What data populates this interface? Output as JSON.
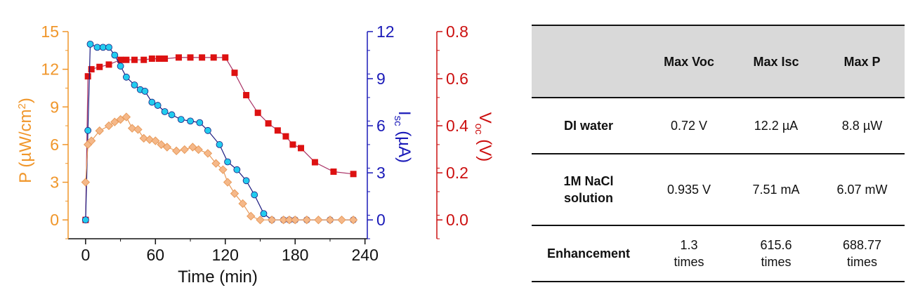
{
  "chart_data": {
    "type": "line",
    "xlabel": "Time (min)",
    "xlim": [
      -15,
      242
    ],
    "xticks": [
      0,
      60,
      120,
      180,
      240
    ],
    "axes": [
      {
        "id": "P",
        "label": "P (µW/cm²)",
        "color": "#f0962a",
        "ylim": [
          -1.5,
          15
        ],
        "ticks": [
          0,
          3,
          6,
          9,
          12,
          15
        ]
      },
      {
        "id": "Isc",
        "label": "Isc (µA)",
        "color": "#1a1ab8",
        "ylim": [
          -1.2,
          12
        ],
        "ticks": [
          0,
          3,
          6,
          9,
          12
        ]
      },
      {
        "id": "Voc",
        "label": "Voc (V)",
        "color": "#cc1010",
        "ylim": [
          -0.08,
          0.8
        ],
        "ticks": [
          0.0,
          0.2,
          0.4,
          0.6,
          0.8
        ]
      }
    ],
    "series": [
      {
        "axis": "Voc",
        "marker": "square",
        "color": "#dd1111",
        "line": "#aa3366",
        "x": [
          0,
          2,
          5,
          12,
          20,
          30,
          35,
          42,
          50,
          57,
          63,
          68,
          80,
          90,
          100,
          110,
          120,
          128,
          138,
          148,
          157,
          165,
          172,
          178,
          185,
          197,
          213,
          230
        ],
        "y": [
          0.0,
          0.61,
          0.64,
          0.65,
          0.66,
          0.68,
          0.68,
          0.68,
          0.68,
          0.685,
          0.685,
          0.685,
          0.69,
          0.69,
          0.69,
          0.69,
          0.69,
          0.625,
          0.53,
          0.455,
          0.41,
          0.38,
          0.355,
          0.32,
          0.305,
          0.245,
          0.205,
          0.195
        ]
      },
      {
        "axis": "Isc",
        "marker": "circle",
        "color": "#22ccee",
        "line": "#1a1a80",
        "x": [
          0,
          2,
          4,
          10,
          15,
          20,
          25,
          30,
          35,
          42,
          47,
          51,
          57,
          62,
          68,
          74,
          82,
          90,
          98,
          105,
          115,
          122,
          130,
          138,
          145,
          153,
          160,
          170,
          175,
          180,
          190,
          210,
          230
        ],
        "y": [
          0.0,
          5.7,
          11.2,
          11.0,
          11.0,
          11.0,
          10.5,
          9.8,
          9.1,
          8.6,
          8.3,
          8.2,
          7.5,
          7.3,
          6.9,
          6.7,
          6.4,
          6.3,
          6.2,
          5.7,
          4.8,
          3.7,
          3.2,
          2.5,
          1.6,
          0.4,
          0.0,
          0.0,
          0.0,
          0.0,
          0.0,
          0.0,
          0.0
        ]
      },
      {
        "axis": "P",
        "marker": "diamond",
        "color": "#f5b889",
        "stroke": "#e89a5a",
        "line": "#e89a5a",
        "x": [
          0,
          2,
          5,
          12,
          20,
          25,
          30,
          35,
          40,
          45,
          50,
          55,
          60,
          65,
          70,
          78,
          85,
          92,
          97,
          105,
          112,
          118,
          122,
          128,
          135,
          142,
          150,
          160,
          170,
          175,
          180,
          190,
          200,
          210,
          220,
          230
        ],
        "y": [
          3.0,
          6.0,
          6.3,
          7.1,
          7.5,
          7.8,
          8.0,
          8.2,
          7.3,
          7.2,
          6.5,
          6.4,
          6.3,
          6.0,
          5.8,
          5.5,
          5.6,
          5.8,
          5.6,
          5.3,
          4.5,
          4.0,
          3.0,
          2.1,
          1.3,
          0.3,
          0.0,
          0.0,
          0.0,
          0.0,
          0.0,
          0.0,
          0.0,
          0.0,
          0.0,
          0.0
        ]
      }
    ]
  },
  "table": {
    "headers": [
      "",
      "Max Voc",
      "Max Isc",
      "Max P"
    ],
    "rows": [
      {
        "label": "DI water",
        "voc": "0.72 V",
        "isc": "12.2 µA",
        "p": "8.8 µW"
      },
      {
        "label": "1M NaCl solution",
        "voc": "0.935 V",
        "isc": "7.51 mA",
        "p": "6.07 mW"
      },
      {
        "label": "Enhancement",
        "voc": "1.3 times",
        "isc": "615.6 times",
        "p": "688.77 times"
      }
    ]
  }
}
